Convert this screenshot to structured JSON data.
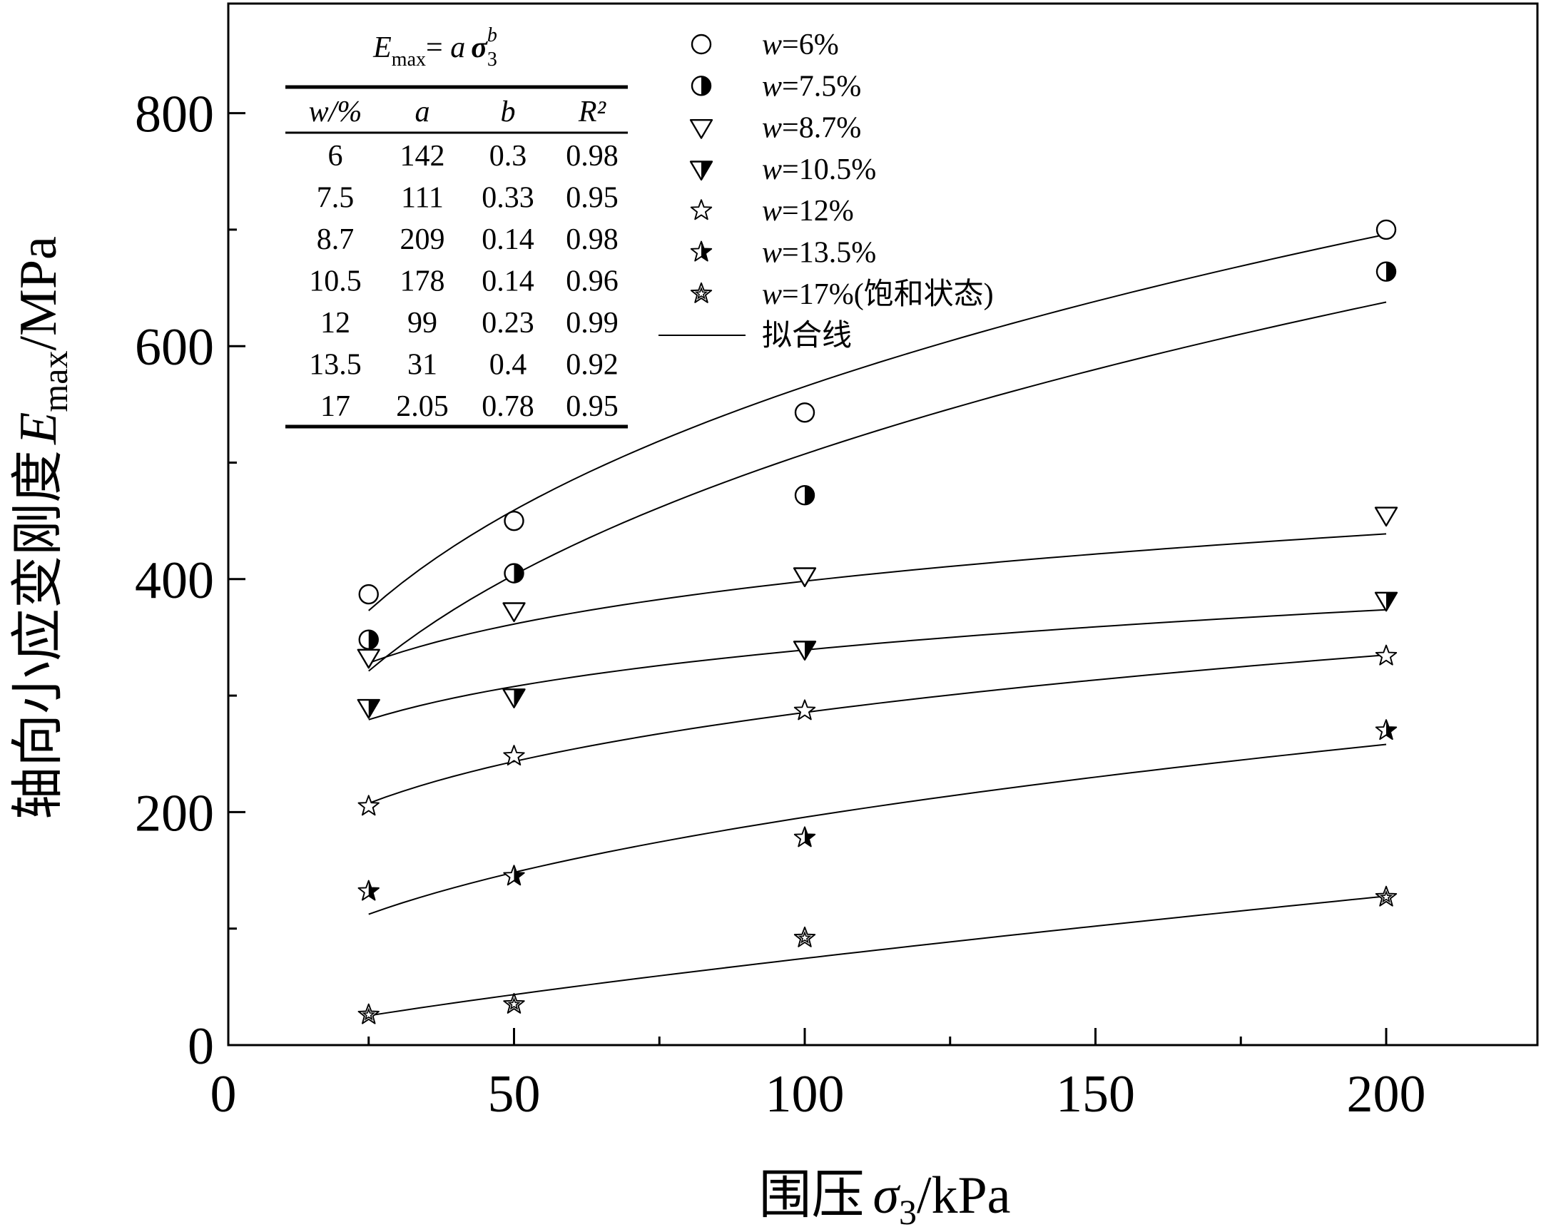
{
  "chart_data": {
    "type": "scatter",
    "xlabel": {
      "prefix": "围压",
      "symbol": "σ",
      "sub": "3",
      "suffix": "/kPa"
    },
    "ylabel": {
      "prefix": "轴向小应变刚度",
      "symbol": "E",
      "sub": "max",
      "suffix": "/MPa"
    },
    "xlim": [
      0,
      225
    ],
    "ylim": [
      0,
      900
    ],
    "xticks": [
      0,
      50,
      100,
      150,
      200
    ],
    "yticks": [
      0,
      200,
      400,
      600,
      800
    ],
    "x": [
      25,
      50,
      100,
      200
    ],
    "series": [
      {
        "name": "w=6%",
        "var": "w",
        "eq": "=6%",
        "marker": "circle-open",
        "values": [
          387,
          450,
          543,
          700
        ],
        "fit": {
          "a": 142,
          "b": 0.3
        }
      },
      {
        "name": "w=7.5%",
        "var": "w",
        "eq": "=7.5%",
        "marker": "circle-half",
        "values": [
          348,
          405,
          472,
          664
        ],
        "fit": {
          "a": 111,
          "b": 0.33
        }
      },
      {
        "name": "w=8.7%",
        "var": "w",
        "eq": "=8.7%",
        "marker": "triangle-open",
        "values": [
          333,
          373,
          403,
          455
        ],
        "fit": {
          "a": 209,
          "b": 0.14
        }
      },
      {
        "name": "w=10.5%",
        "var": "w",
        "eq": "=10.5%",
        "marker": "triangle-half",
        "values": [
          290,
          299,
          340,
          382
        ],
        "fit": {
          "a": 178,
          "b": 0.14
        }
      },
      {
        "name": "w=12%",
        "var": "w",
        "eq": "=12%",
        "marker": "star-open",
        "values": [
          205,
          248,
          287,
          334
        ],
        "fit": {
          "a": 99,
          "b": 0.23
        }
      },
      {
        "name": "w=13.5%",
        "var": "w",
        "eq": "=13.5%",
        "marker": "star-half",
        "values": [
          132,
          145,
          178,
          270
        ],
        "fit": {
          "a": 31,
          "b": 0.4
        }
      },
      {
        "name": "w=17%(饱和状态)",
        "var": "w",
        "eq": "=17%(饱和状态)",
        "marker": "star-inner",
        "values": [
          26,
          35,
          92,
          127
        ],
        "fit": {
          "a": 2.05,
          "b": 0.78
        }
      }
    ],
    "fit_legend": "拟合线",
    "inset_table": {
      "formula": {
        "lhs": "E",
        "lhs_sub": "max",
        "eq": "= ",
        "a": "a",
        "sigma": "σ",
        "sub": "3",
        "sup": "b"
      },
      "headers": [
        "w/%",
        "a",
        "b",
        "R²"
      ],
      "rows": [
        [
          "6",
          "142",
          "0.3",
          "0.98"
        ],
        [
          "7.5",
          "111",
          "0.33",
          "0.95"
        ],
        [
          "8.7",
          "209",
          "0.14",
          "0.98"
        ],
        [
          "10.5",
          "178",
          "0.14",
          "0.96"
        ],
        [
          "12",
          "99",
          "0.23",
          "0.99"
        ],
        [
          "13.5",
          "31",
          "0.4",
          "0.92"
        ],
        [
          "17",
          "2.05",
          "0.78",
          "0.95"
        ]
      ]
    }
  }
}
